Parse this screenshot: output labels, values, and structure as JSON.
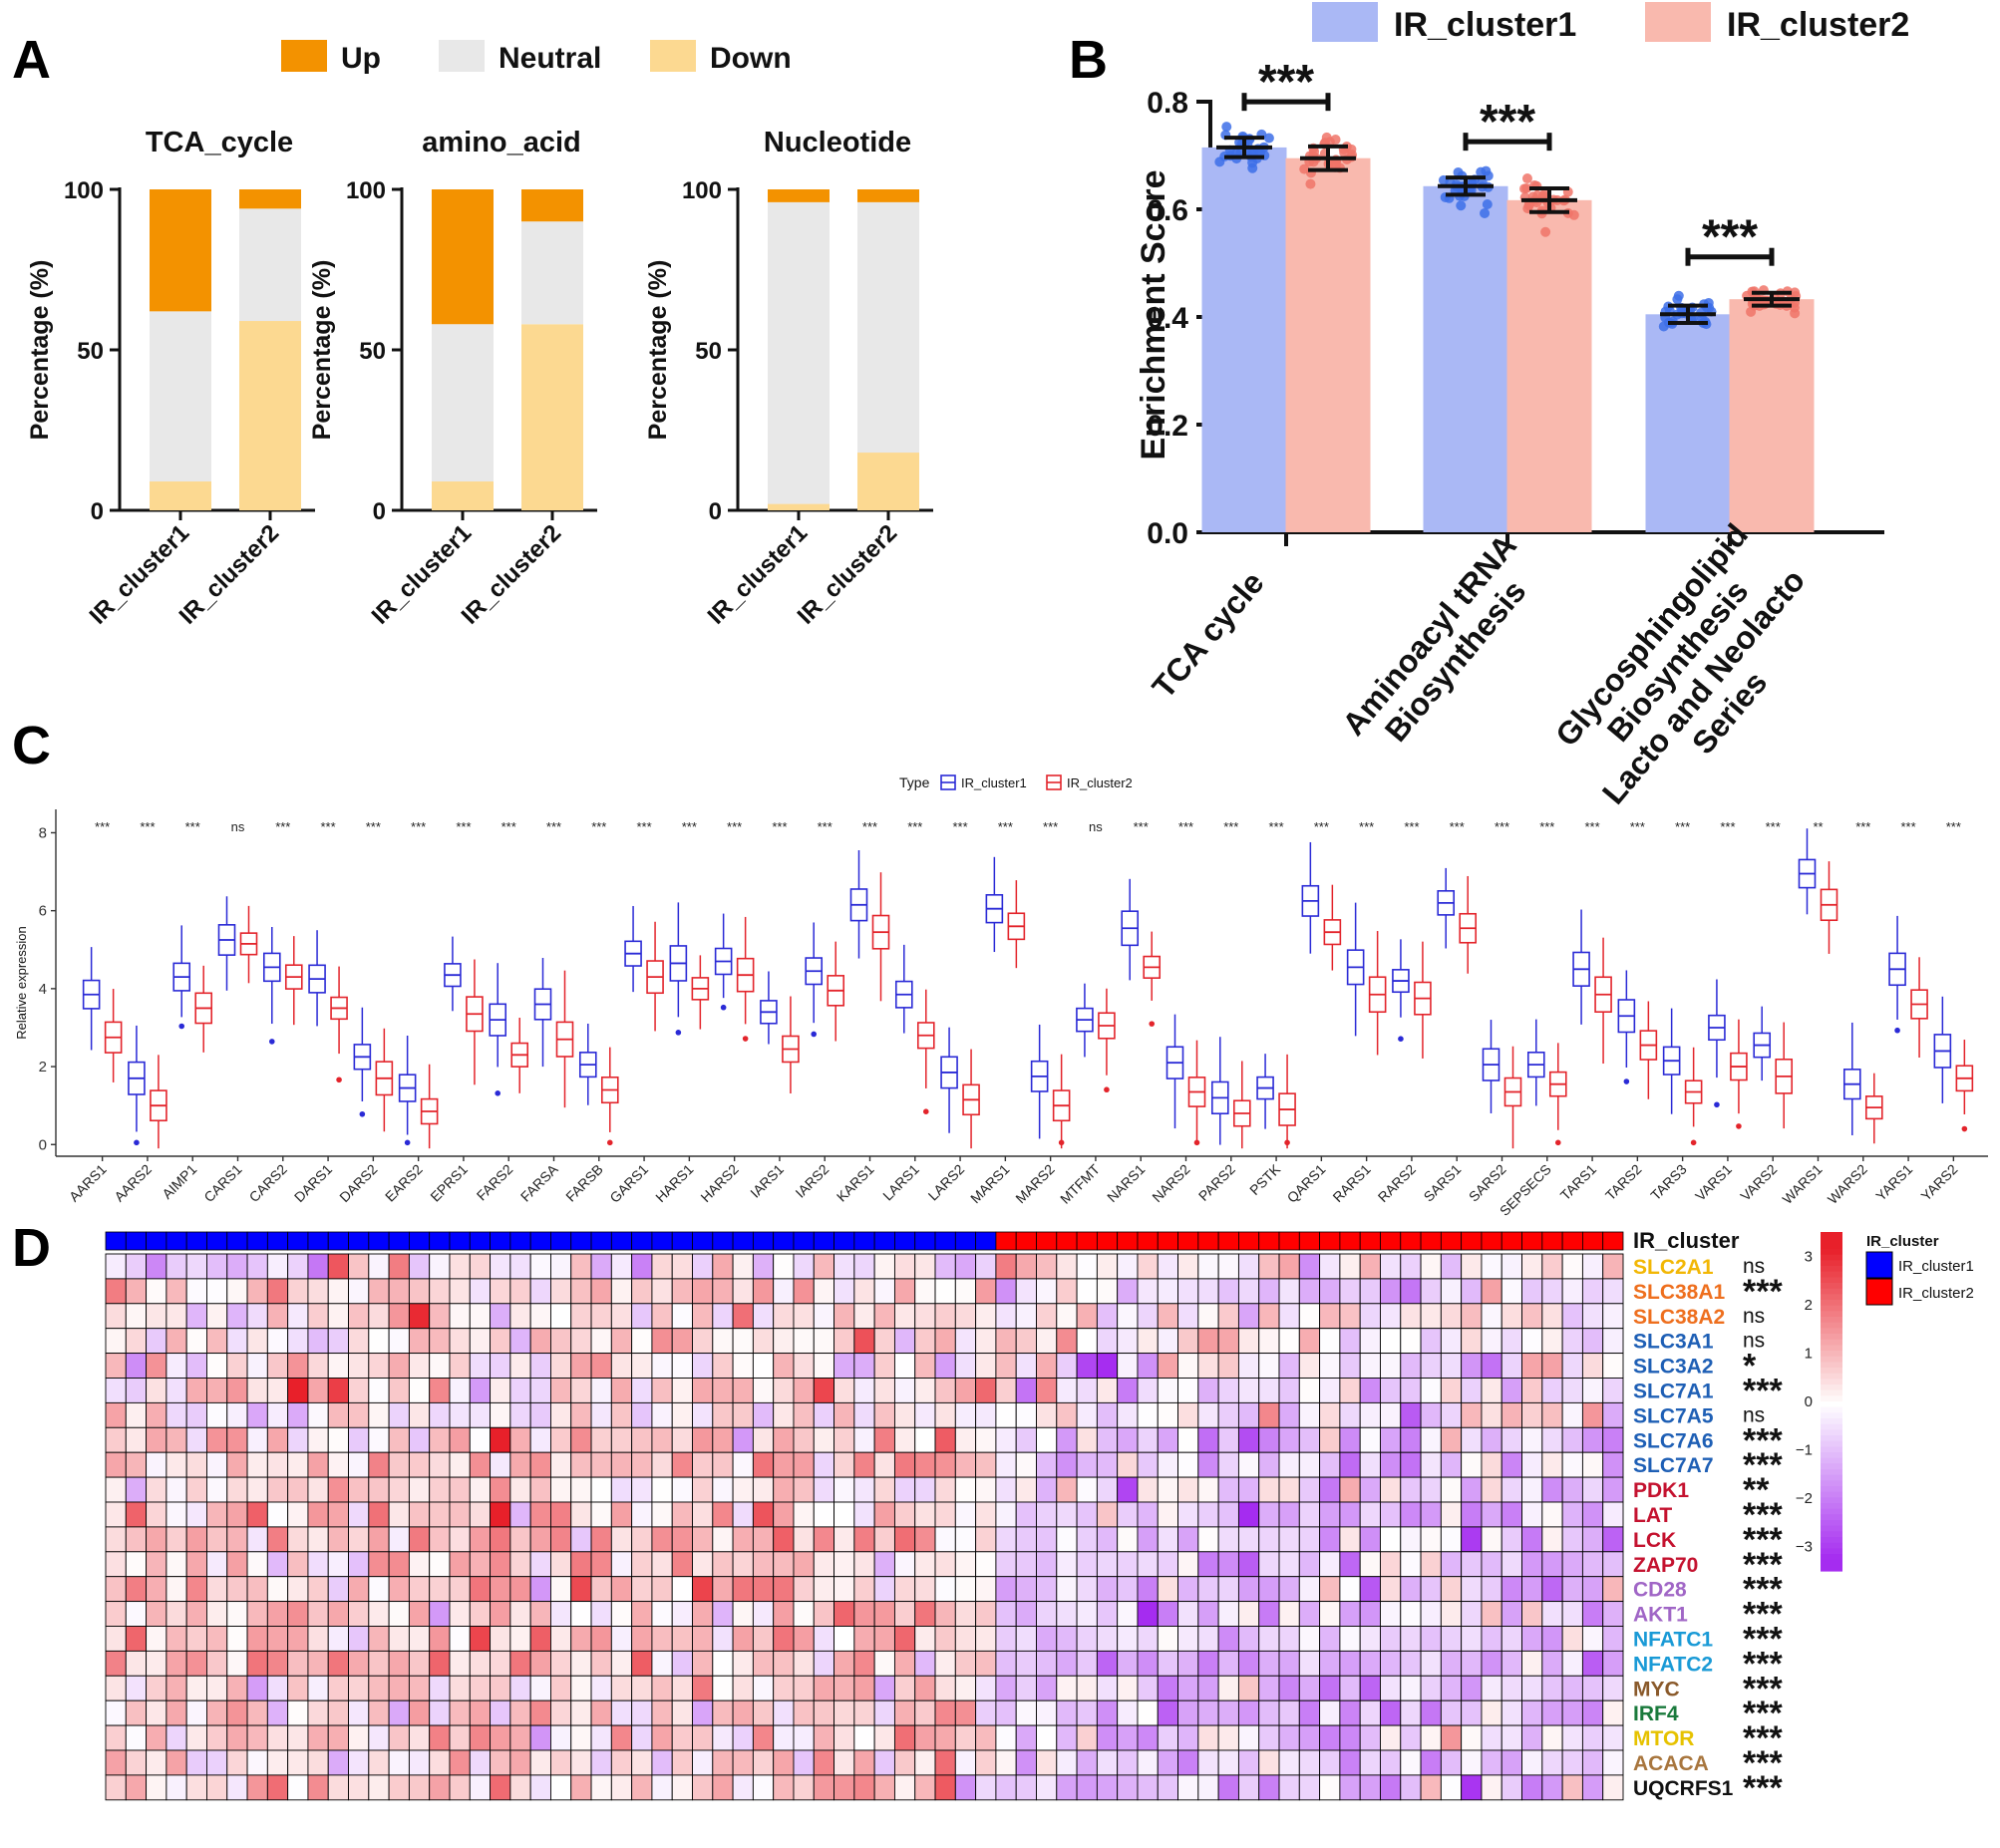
{
  "panels": {
    "a": "A",
    "b": "B",
    "c": "C",
    "d": "D"
  },
  "colors": {
    "up": "#f39200",
    "neutral": "#e8e8e8",
    "down": "#fcd991",
    "cluster1_bar": "#aab8f5",
    "cluster2_bar": "#f9b9ae",
    "cluster1_pt": "#3d6fe8",
    "cluster2_pt": "#f07468",
    "box1": "#2a2ad6",
    "box2": "#e3242b",
    "heat_high": "#e8202a",
    "heat_mid": "#ffffff",
    "heat_low": "#a52cf0",
    "anno1": "#0000ff",
    "anno2": "#ff0000"
  },
  "chart_data": [
    {
      "id": "A",
      "type": "bar",
      "stacked": true,
      "legend": [
        "Up",
        "Neutral",
        "Down"
      ],
      "ylabel": "Percentage (%)",
      "yticks": [
        "0",
        "50",
        "100"
      ],
      "ylim": [
        0,
        100
      ],
      "categories": [
        "IR_cluster1",
        "IR_cluster2"
      ],
      "subplots": [
        {
          "title": "TCA_cycle",
          "series": [
            {
              "name": "Down",
              "values": [
                9,
                59
              ]
            },
            {
              "name": "Neutral",
              "values": [
                53,
                35
              ]
            },
            {
              "name": "Up",
              "values": [
                38,
                6
              ]
            }
          ]
        },
        {
          "title": "amino_acid",
          "series": [
            {
              "name": "Down",
              "values": [
                9,
                58
              ]
            },
            {
              "name": "Neutral",
              "values": [
                49,
                32
              ]
            },
            {
              "name": "Up",
              "values": [
                42,
                10
              ]
            }
          ]
        },
        {
          "title": "Nucleotide",
          "series": [
            {
              "name": "Down",
              "values": [
                2,
                18
              ]
            },
            {
              "name": "Neutral",
              "values": [
                94,
                78
              ]
            },
            {
              "name": "Up",
              "values": [
                4,
                4
              ]
            }
          ]
        }
      ]
    },
    {
      "id": "B",
      "type": "bar",
      "legend": [
        "IR_cluster1",
        "IR_cluster2"
      ],
      "ylabel": "Enrichment Score",
      "yticks": [
        "0.0",
        "0.2",
        "0.4",
        "0.6",
        "0.8"
      ],
      "ylim": [
        0,
        0.8
      ],
      "categories": [
        [
          "TCA cycle"
        ],
        [
          "Aminoacyl tRNA",
          "Biosynthesis"
        ],
        [
          "Glycosphingolipid",
          "Biosynthesis",
          "Lacto and Neolacto",
          "Series"
        ]
      ],
      "series": [
        {
          "name": "IR_cluster1",
          "values": [
            0.715,
            0.643,
            0.405
          ],
          "sd": [
            0.018,
            0.016,
            0.016
          ]
        },
        {
          "name": "IR_cluster2",
          "values": [
            0.695,
            0.617,
            0.433
          ],
          "sd": [
            0.022,
            0.022,
            0.012
          ]
        }
      ],
      "significance": [
        "***",
        "***",
        "***"
      ]
    },
    {
      "id": "C",
      "type": "boxplot",
      "legend_title": "Type",
      "legend": [
        "IR_cluster1",
        "IR_cluster2"
      ],
      "ylabel": "Relative expression",
      "yticks": [
        "0",
        "2",
        "4",
        "6",
        "8"
      ],
      "ylim": [
        -0.3,
        8.6
      ],
      "genes": [
        "AARS1",
        "AARS2",
        "AIMP1",
        "CARS1",
        "CARS2",
        "DARS1",
        "DARS2",
        "EARS2",
        "EPRS1",
        "FARS2",
        "FARSA",
        "FARSB",
        "GARS1",
        "HARS1",
        "HARS2",
        "IARS1",
        "IARS2",
        "KARS1",
        "LARS1",
        "LARS2",
        "MARS1",
        "MARS2",
        "MTFMT",
        "NARS1",
        "NARS2",
        "PARS2",
        "PSTK",
        "QARS1",
        "RARS1",
        "RARS2",
        "SARS1",
        "SARS2",
        "SEPSECS",
        "TARS1",
        "TARS2",
        "TARS3",
        "VARS1",
        "VARS2",
        "WARS1",
        "WARS2",
        "YARS1",
        "YARS2"
      ],
      "significance": [
        "***",
        "***",
        "***",
        "ns",
        "***",
        "***",
        "***",
        "***",
        "***",
        "***",
        "***",
        "***",
        "***",
        "***",
        "***",
        "***",
        "***",
        "***",
        "***",
        "***",
        "***",
        "***",
        "ns",
        "***",
        "***",
        "***",
        "***",
        "***",
        "***",
        "***",
        "***",
        "***",
        "***",
        "***",
        "***",
        "***",
        "***",
        "***",
        "**",
        "***",
        "***",
        "***"
      ],
      "cluster1_median": [
        3.85,
        1.7,
        4.3,
        5.25,
        4.55,
        4.25,
        2.25,
        1.45,
        4.35,
        3.2,
        3.6,
        2.05,
        4.9,
        4.65,
        4.7,
        3.4,
        4.45,
        6.15,
        3.85,
        1.85,
        6.05,
        1.75,
        3.2,
        5.55,
        2.1,
        1.2,
        1.45,
        6.25,
        4.55,
        4.2,
        6.2,
        2.05,
        2.05,
        4.5,
        3.3,
        2.15,
        3.0,
        2.55,
        6.95,
        1.55,
        4.5,
        2.4
      ],
      "cluster2_median": [
        2.75,
        1.0,
        3.5,
        5.15,
        4.3,
        3.5,
        1.7,
        0.85,
        3.35,
        2.3,
        2.7,
        1.4,
        4.3,
        4.0,
        4.35,
        2.45,
        3.95,
        5.45,
        2.8,
        1.15,
        5.6,
        1.0,
        3.05,
        4.55,
        1.35,
        0.8,
        0.9,
        5.45,
        3.85,
        3.75,
        5.55,
        1.35,
        1.55,
        3.85,
        2.55,
        1.35,
        2.0,
        1.75,
        6.15,
        0.95,
        3.6,
        1.7
      ]
    },
    {
      "id": "D",
      "type": "heatmap",
      "annotation_title": "IR_cluster",
      "annotation_legend": [
        "IR_cluster1",
        "IR_cluster2"
      ],
      "n_cluster1": 44,
      "n_cluster2": 31,
      "scale_ticks": [
        "3",
        "2",
        "1",
        "0",
        "−1",
        "−2",
        "−3"
      ],
      "scale_range": [
        -3.5,
        3.5
      ],
      "rows": [
        {
          "gene": "SLC2A1",
          "sig": "ns",
          "color": "#f2b705",
          "c1_mean": -0.2,
          "c2_mean": 0.3
        },
        {
          "gene": "SLC38A1",
          "sig": "***",
          "color": "#ee6f1e",
          "c1_mean": 0.4,
          "c2_mean": -0.5
        },
        {
          "gene": "SLC38A2",
          "sig": "ns",
          "color": "#ee6f1e",
          "c1_mean": 0.1,
          "c2_mean": 0.1
        },
        {
          "gene": "SLC3A1",
          "sig": "ns",
          "color": "#1e5fb5",
          "c1_mean": 0.2,
          "c2_mean": 0.0
        },
        {
          "gene": "SLC3A2",
          "sig": "*",
          "color": "#1e5fb5",
          "c1_mean": 0.3,
          "c2_mean": 0.0
        },
        {
          "gene": "SLC7A1",
          "sig": "***",
          "color": "#1e5fb5",
          "c1_mean": 0.5,
          "c2_mean": -0.5
        },
        {
          "gene": "SLC7A5",
          "sig": "ns",
          "color": "#1e5fb5",
          "c1_mean": 0.1,
          "c2_mean": -0.1
        },
        {
          "gene": "SLC7A6",
          "sig": "***",
          "color": "#1e5fb5",
          "c1_mean": 0.6,
          "c2_mean": -0.7
        },
        {
          "gene": "SLC7A7",
          "sig": "***",
          "color": "#1e5fb5",
          "c1_mean": 0.6,
          "c2_mean": -0.7
        },
        {
          "gene": "PDK1",
          "sig": "**",
          "color": "#c4122f",
          "c1_mean": 0.3,
          "c2_mean": -0.5
        },
        {
          "gene": "LAT",
          "sig": "***",
          "color": "#c4122f",
          "c1_mean": 0.6,
          "c2_mean": -0.8
        },
        {
          "gene": "LCK",
          "sig": "***",
          "color": "#c4122f",
          "c1_mean": 0.7,
          "c2_mean": -0.9
        },
        {
          "gene": "ZAP70",
          "sig": "***",
          "color": "#c4122f",
          "c1_mean": 0.7,
          "c2_mean": -0.9
        },
        {
          "gene": "CD28",
          "sig": "***",
          "color": "#a066c6",
          "c1_mean": 0.6,
          "c2_mean": -0.9
        },
        {
          "gene": "AKT1",
          "sig": "***",
          "color": "#a066c6",
          "c1_mean": 0.6,
          "c2_mean": -0.8
        },
        {
          "gene": "NFATC1",
          "sig": "***",
          "color": "#1a9ad6",
          "c1_mean": 0.7,
          "c2_mean": -0.9
        },
        {
          "gene": "NFATC2",
          "sig": "***",
          "color": "#1a9ad6",
          "c1_mean": 0.8,
          "c2_mean": -1.0
        },
        {
          "gene": "MYC",
          "sig": "***",
          "color": "#8a5a2b",
          "c1_mean": 0.6,
          "c2_mean": -0.8
        },
        {
          "gene": "IRF4",
          "sig": "***",
          "color": "#1a7a3c",
          "c1_mean": 0.6,
          "c2_mean": -0.8
        },
        {
          "gene": "MTOR",
          "sig": "***",
          "color": "#e6c200",
          "c1_mean": 0.6,
          "c2_mean": -0.8
        },
        {
          "gene": "ACACA",
          "sig": "***",
          "color": "#a8763e",
          "c1_mean": 0.6,
          "c2_mean": -0.8
        },
        {
          "gene": "UQCRFS1",
          "sig": "***",
          "color": "#111111",
          "c1_mean": 0.6,
          "c2_mean": -0.9
        }
      ]
    }
  ]
}
